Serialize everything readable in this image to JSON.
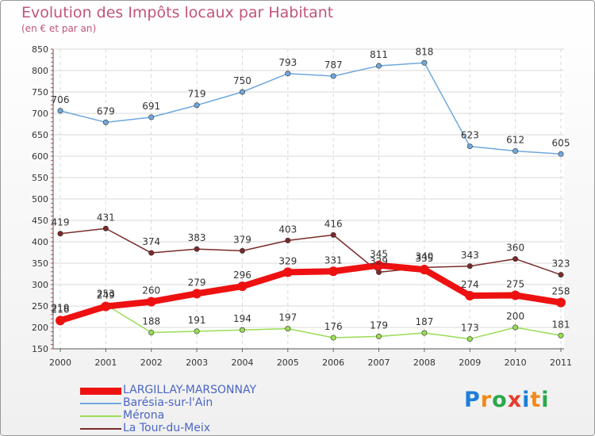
{
  "title": "Evolution des Impôts locaux par Habitant",
  "subtitle": "(en € et par an)",
  "brand": {
    "letters": [
      {
        "ch": "P",
        "color": "#1e7fd8"
      },
      {
        "ch": "r",
        "color": "#f08a1c"
      },
      {
        "ch": "o",
        "color": "#2ba84a"
      },
      {
        "ch": "x",
        "color": "#e63b2e"
      },
      {
        "ch": "i",
        "color": "#1e7fd8"
      },
      {
        "ch": "t",
        "color": "#f08a1c"
      },
      {
        "ch": "i",
        "color": "#2ba84a"
      }
    ]
  },
  "chart_data": {
    "type": "line",
    "title": "Evolution des Impôts locaux par Habitant",
    "subtitle": "(en € et par an)",
    "x": [
      "2000",
      "2001",
      "2002",
      "2003",
      "2004",
      "2005",
      "2006",
      "2007",
      "2008",
      "2009",
      "2010",
      "2011"
    ],
    "ylim": [
      150,
      850
    ],
    "yticks": [
      150,
      200,
      250,
      300,
      350,
      400,
      450,
      500,
      550,
      600,
      650,
      700,
      750,
      800,
      850
    ],
    "grid": true,
    "legend_position": "bottom-left",
    "series": [
      {
        "name": "LARGILLAY-MARSONNAY",
        "color": "#ee1111",
        "values": [
          216,
          249,
          260,
          279,
          296,
          329,
          331,
          345,
          335,
          274,
          275,
          258
        ],
        "labels": [
          "216",
          "249",
          "260",
          "279",
          "296",
          "329",
          "331",
          "345",
          "335",
          "274",
          "275",
          "258"
        ]
      },
      {
        "name": "Barésia-sur-l'Ain",
        "color": "#6fa8dc",
        "values": [
          706,
          679,
          691,
          719,
          750,
          793,
          787,
          811,
          818,
          623,
          612,
          605
        ],
        "labels": [
          "706",
          "679",
          "691",
          "719",
          "750",
          "793",
          "787",
          "811",
          "818",
          "623",
          "612",
          "605"
        ]
      },
      {
        "name": "Mérona",
        "color": "#99dd55",
        "values": [
          219,
          253,
          188,
          191,
          194,
          197,
          176,
          179,
          187,
          173,
          200,
          181
        ],
        "labels": [
          "219",
          "253",
          "188",
          "191",
          "194",
          "197",
          "176",
          "179",
          "187",
          "173",
          "200",
          "181"
        ]
      },
      {
        "name": "La Tour-du-Meix",
        "color": "#7a2a2a",
        "values": [
          419,
          431,
          374,
          383,
          379,
          403,
          416,
          329,
          340,
          343,
          360,
          323
        ],
        "labels": [
          "419",
          "431",
          "374",
          "383",
          "379",
          "403",
          "416",
          "329",
          "340",
          "343",
          "360",
          "323"
        ]
      }
    ]
  }
}
